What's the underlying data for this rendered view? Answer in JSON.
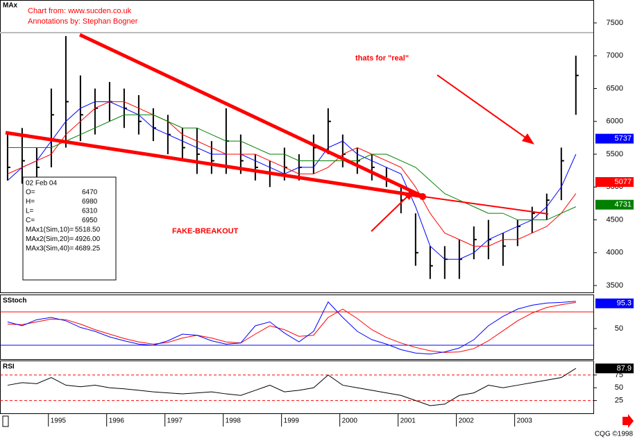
{
  "annotations": {
    "source": "Chart from: www.sucden.co.uk",
    "author": "Annotations by: Stephan Bogner",
    "real": "thats for \"real\"",
    "fake": "FAKE-BREAKOUT",
    "footer": "CQG ©1998"
  },
  "info_box": {
    "date": "02 Feb 04",
    "rows": [
      {
        "label": "O=",
        "value": "6470"
      },
      {
        "label": "H=",
        "value": "6980"
      },
      {
        "label": "L=",
        "value": "6310"
      },
      {
        "label": "C=",
        "value": "6950"
      },
      {
        "label": "MAx1(Sim,10)=",
        "value": "5518.50"
      },
      {
        "label": "MAx2(Sim,20)=",
        "value": "4926.00"
      },
      {
        "label": "MAx3(Sim,40)=",
        "value": "4689.25"
      }
    ]
  },
  "chart_data": [
    {
      "type": "ohlc",
      "title": "MAx",
      "xlim": [
        1994.17,
        2004.35
      ],
      "ylim": [
        3384,
        7849
      ],
      "yticks": [
        3500,
        4000,
        4500,
        5000,
        5500,
        6000,
        6500,
        7000,
        7500
      ],
      "x": [
        1994.3,
        1994.55,
        1994.8,
        1995.05,
        1995.3,
        1995.55,
        1995.8,
        1996.05,
        1996.3,
        1996.55,
        1996.8,
        1997.05,
        1997.3,
        1997.55,
        1997.8,
        1998.05,
        1998.3,
        1998.55,
        1998.8,
        1999.05,
        1999.3,
        1999.55,
        1999.8,
        2000.05,
        2000.3,
        2000.55,
        2000.8,
        2001.05,
        2001.3,
        2001.55,
        2001.8,
        2002.05,
        2002.3,
        2002.55,
        2002.8,
        2003.05,
        2003.3,
        2003.55,
        2003.8,
        2004.05
      ],
      "high": [
        5800,
        5900,
        5600,
        6500,
        7300,
        6700,
        6500,
        6600,
        6500,
        6400,
        6200,
        6100,
        5900,
        5900,
        5700,
        6200,
        5800,
        5500,
        5400,
        5600,
        5500,
        5800,
        6200,
        5800,
        5600,
        5500,
        5300,
        5000,
        4600,
        4100,
        4100,
        4200,
        4400,
        4500,
        4300,
        4500,
        4700,
        4900,
        5600,
        7000
      ],
      "low": [
        5100,
        5050,
        5000,
        5300,
        5600,
        5700,
        5800,
        6000,
        5900,
        5800,
        5700,
        5500,
        5400,
        5200,
        5200,
        5200,
        5200,
        5100,
        5000,
        5100,
        5100,
        5200,
        5500,
        5300,
        5200,
        5100,
        5000,
        4600,
        3800,
        3600,
        3600,
        3600,
        3900,
        3900,
        3800,
        4100,
        4300,
        4500,
        4800,
        6100
      ],
      "close": [
        5300,
        5400,
        5300,
        6100,
        6300,
        6100,
        6200,
        6300,
        6200,
        6000,
        5900,
        5800,
        5600,
        5500,
        5400,
        5700,
        5400,
        5300,
        5200,
        5300,
        5300,
        5600,
        6000,
        5500,
        5400,
        5300,
        5100,
        4800,
        4000,
        3800,
        3900,
        3900,
        4200,
        4200,
        4100,
        4400,
        4600,
        4800,
        5400,
        6700
      ],
      "color": "#000000",
      "series": [
        {
          "color": "#0000ff",
          "last_value": 5737,
          "values": [
            5100,
            5300,
            5400,
            5700,
            6000,
            6200,
            6300,
            6300,
            6200,
            6100,
            5900,
            5800,
            5700,
            5600,
            5500,
            5500,
            5500,
            5400,
            5300,
            5200,
            5300,
            5300,
            5600,
            5700,
            5500,
            5400,
            5300,
            5200,
            4700,
            4100,
            3900,
            3900,
            4000,
            4200,
            4300,
            4400,
            4500,
            4700,
            5000,
            5500
          ]
        },
        {
          "color": "#ff0000",
          "last_value": 5077,
          "values": [
            5200,
            5300,
            5400,
            5500,
            5800,
            6000,
            6200,
            6300,
            6300,
            6200,
            6100,
            6000,
            5800,
            5700,
            5600,
            5500,
            5500,
            5500,
            5400,
            5300,
            5200,
            5200,
            5300,
            5500,
            5600,
            5500,
            5400,
            5300,
            5000,
            4600,
            4300,
            4200,
            4100,
            4100,
            4200,
            4200,
            4300,
            4400,
            4600,
            4900
          ]
        },
        {
          "color": "#008000",
          "last_value": 4731,
          "values": [
            5600,
            5600,
            5600,
            5600,
            5700,
            5800,
            5900,
            6000,
            6100,
            6100,
            6100,
            6000,
            5900,
            5900,
            5800,
            5700,
            5700,
            5600,
            5500,
            5500,
            5400,
            5400,
            5400,
            5400,
            5400,
            5500,
            5500,
            5400,
            5300,
            5100,
            4900,
            4800,
            4700,
            4600,
            4600,
            4500,
            4500,
            4500,
            4600,
            4700
          ]
        }
      ]
    },
    {
      "type": "line",
      "title": "SStoch",
      "xlim": [
        1994.17,
        2004.35
      ],
      "ylim": [
        -5,
        110
      ],
      "yticks": [
        50
      ],
      "levels": [
        {
          "value": 80,
          "color": "#ff0000"
        },
        {
          "value": 20,
          "color": "#0000ff"
        }
      ],
      "x": [
        1994.3,
        1994.55,
        1994.8,
        1995.05,
        1995.3,
        1995.55,
        1995.8,
        1996.05,
        1996.3,
        1996.55,
        1996.8,
        1997.05,
        1997.3,
        1997.55,
        1997.8,
        1998.05,
        1998.3,
        1998.55,
        1998.8,
        1999.05,
        1999.3,
        1999.55,
        1999.8,
        2000.05,
        2000.3,
        2000.55,
        2000.8,
        2001.05,
        2001.3,
        2001.55,
        2001.8,
        2002.05,
        2002.3,
        2002.55,
        2002.8,
        2003.05,
        2003.3,
        2003.55,
        2003.8,
        2004.05
      ],
      "series": [
        {
          "color": "#0000ff",
          "last_value": 95.3,
          "values": [
            62,
            55,
            66,
            70,
            64,
            52,
            45,
            35,
            28,
            22,
            20,
            28,
            40,
            38,
            28,
            22,
            24,
            55,
            62,
            42,
            26,
            45,
            98,
            70,
            45,
            30,
            22,
            12,
            6,
            4,
            8,
            15,
            30,
            55,
            72,
            85,
            92,
            96,
            97,
            99
          ]
        },
        {
          "color": "#ff0000",
          "values": [
            58,
            57,
            62,
            67,
            66,
            58,
            48,
            40,
            32,
            26,
            22,
            25,
            33,
            38,
            33,
            26,
            24,
            40,
            55,
            48,
            36,
            38,
            70,
            85,
            68,
            48,
            34,
            24,
            16,
            10,
            7,
            8,
            14,
            28,
            46,
            64,
            78,
            88,
            93,
            97
          ]
        }
      ]
    },
    {
      "type": "line",
      "title": "RSI",
      "xlim": [
        1994.17,
        2004.35
      ],
      "ylim": [
        0,
        102
      ],
      "yticks": [
        25,
        50,
        75
      ],
      "xticks": [
        1995,
        1996,
        1997,
        1998,
        1999,
        2000,
        2001,
        2002,
        2003
      ],
      "levels": [
        {
          "value": 75,
          "color": "#ff0000"
        },
        {
          "value": 25,
          "color": "#ff0000"
        }
      ],
      "x": [
        1994.3,
        1994.55,
        1994.8,
        1995.05,
        1995.3,
        1995.55,
        1995.8,
        1996.05,
        1996.3,
        1996.55,
        1996.8,
        1997.05,
        1997.3,
        1997.55,
        1997.8,
        1998.05,
        1998.3,
        1998.55,
        1998.8,
        1999.05,
        1999.3,
        1999.55,
        1999.8,
        2000.05,
        2000.3,
        2000.55,
        2000.8,
        2001.05,
        2001.3,
        2001.55,
        2001.8,
        2002.05,
        2002.3,
        2002.55,
        2002.8,
        2003.05,
        2003.3,
        2003.55,
        2003.8,
        2004.05
      ],
      "series": [
        {
          "color": "#000000",
          "last_value": 87.9,
          "values": [
            55,
            60,
            58,
            70,
            55,
            52,
            55,
            50,
            48,
            45,
            42,
            40,
            38,
            40,
            42,
            38,
            35,
            45,
            55,
            42,
            45,
            50,
            75,
            55,
            50,
            45,
            40,
            35,
            25,
            15,
            18,
            35,
            40,
            55,
            50,
            55,
            60,
            65,
            70,
            88
          ]
        }
      ]
    }
  ]
}
